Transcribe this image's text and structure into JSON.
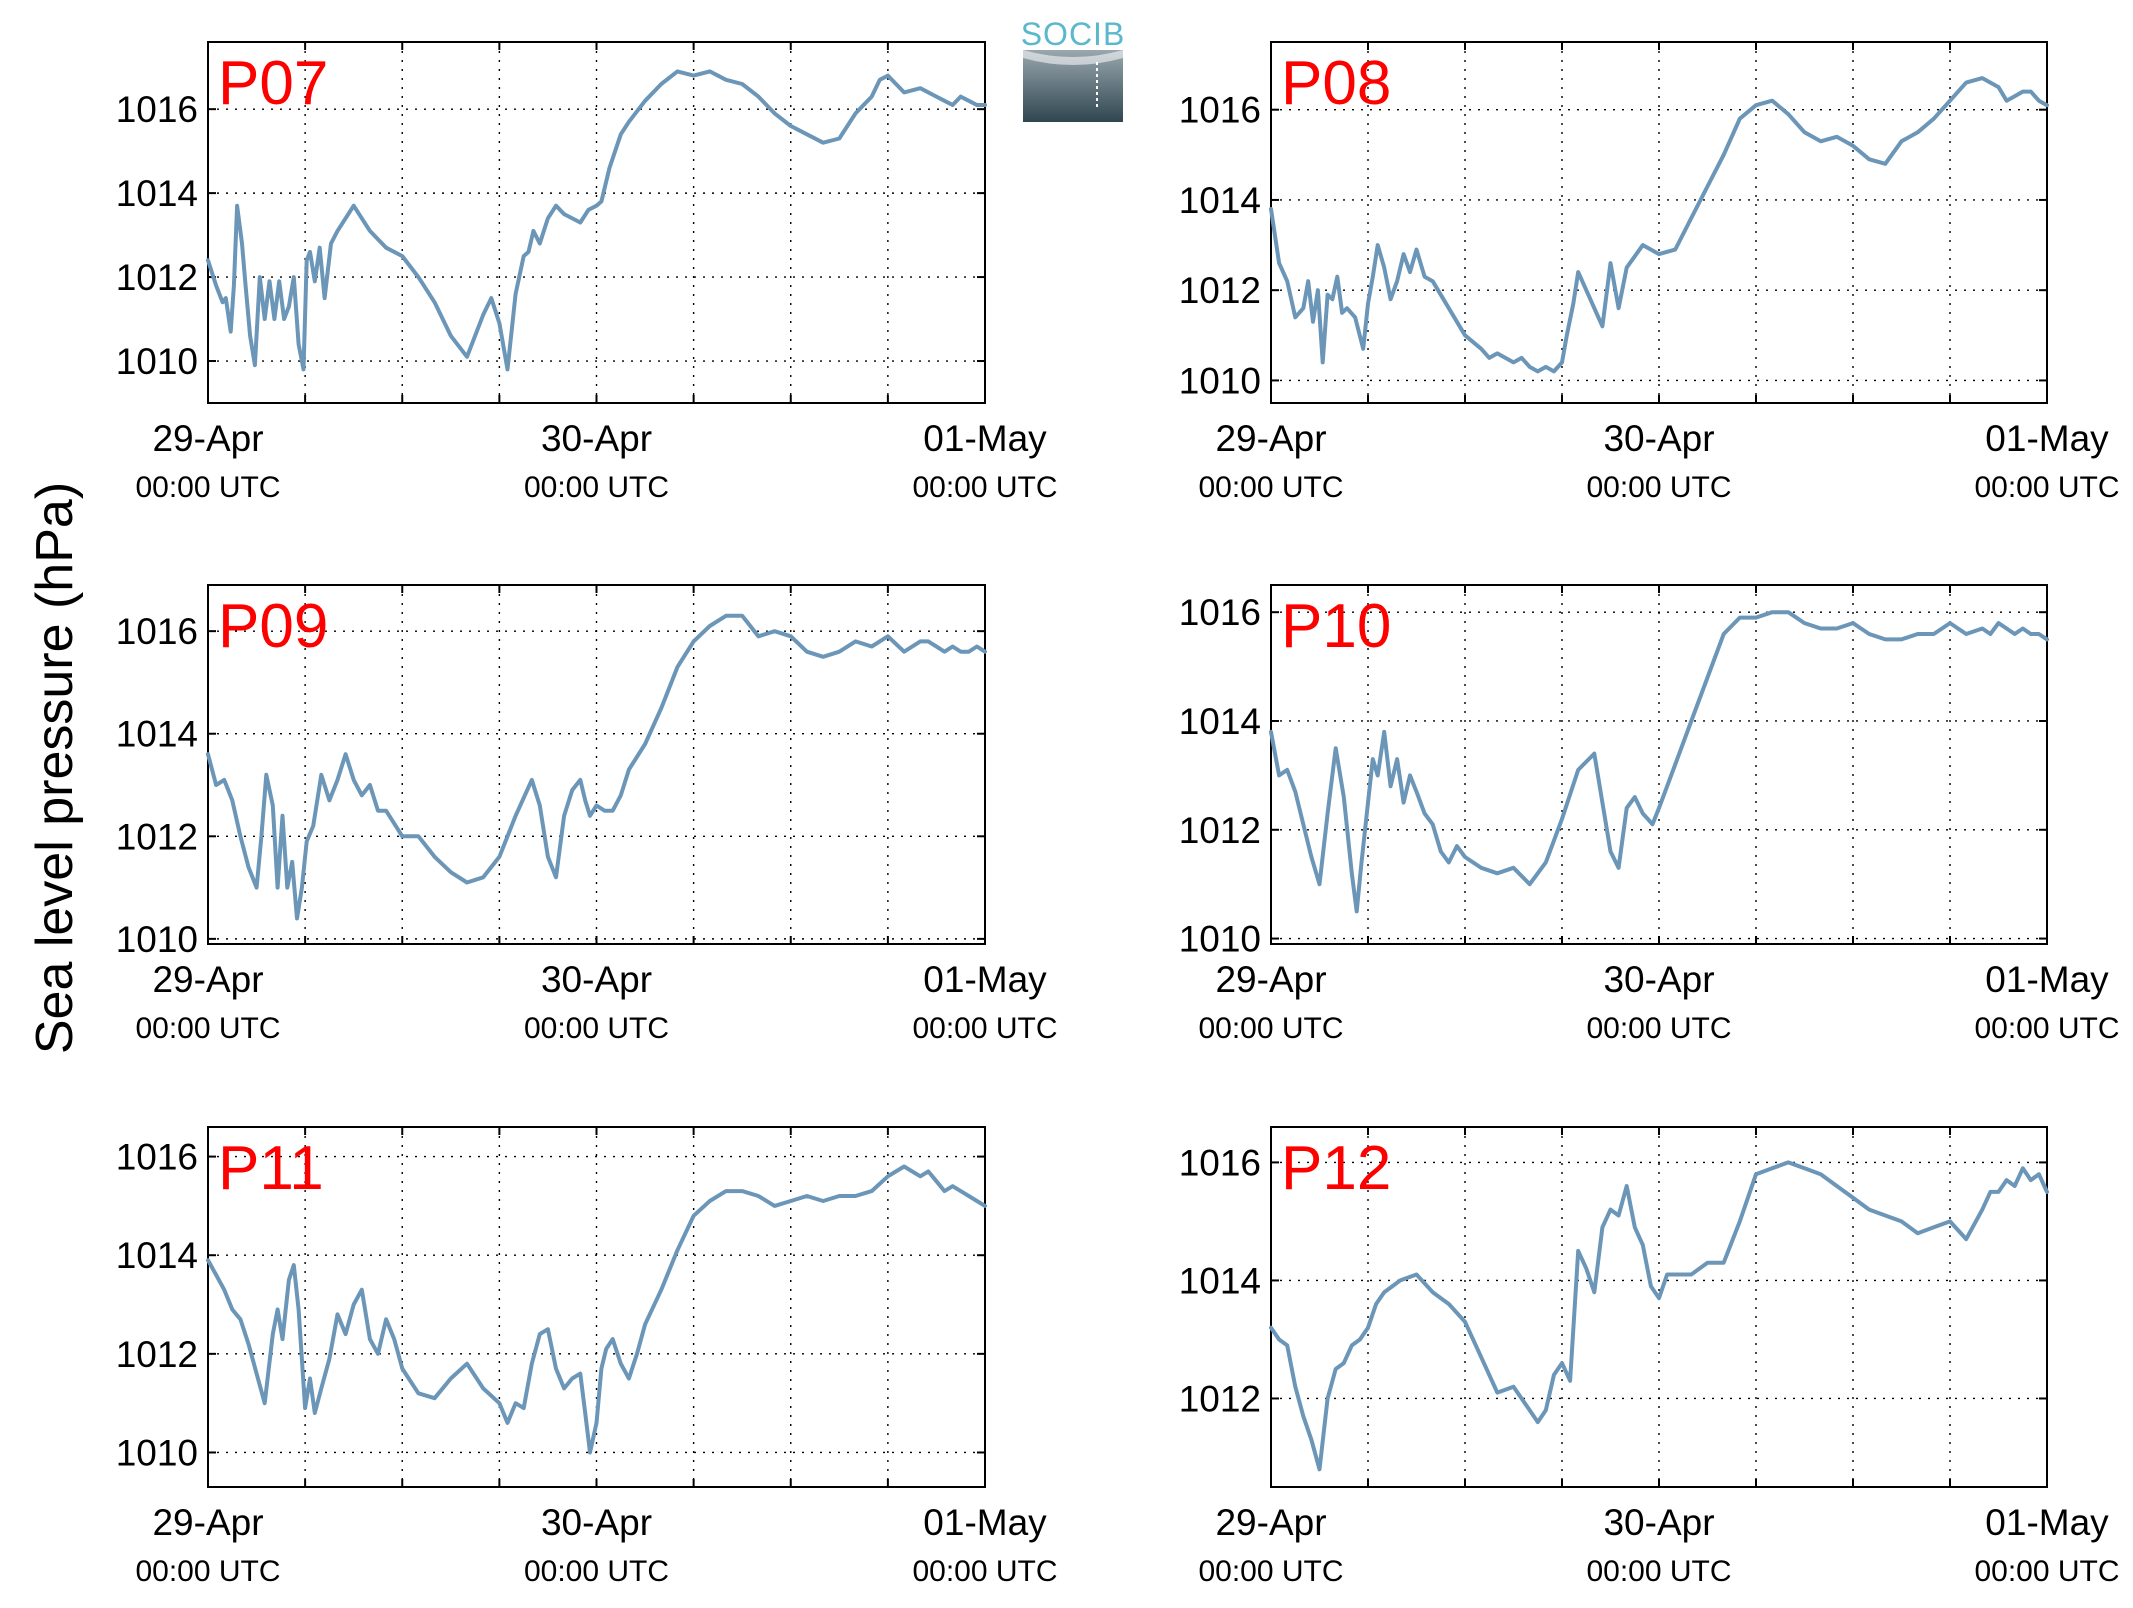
{
  "ylabel": "Sea level pressure (hPa)",
  "logo": {
    "text": "SOCIB",
    "text_color": "#5bb8cc",
    "grad_top": "#9aa7ae",
    "grad_bottom": "#2f4650"
  },
  "colors": {
    "line": "#6b96b8",
    "panel_label": "#ff0000",
    "grid": "#000000",
    "axes": "#000000"
  },
  "chart_data": [
    {
      "type": "line",
      "title": "P07",
      "ylim": [
        1009,
        1017.6
      ],
      "yticks": [
        1010,
        1012,
        1014,
        1016
      ],
      "xlim": [
        0,
        48
      ],
      "xticks": [
        {
          "x": 0,
          "day": "29-Apr",
          "time": "00:00 UTC"
        },
        {
          "x": 24,
          "day": "30-Apr",
          "time": "00:00 UTC"
        },
        {
          "x": 48,
          "day": "01-May",
          "time": "00:00 UTC"
        }
      ],
      "grid": true,
      "x": [
        0,
        0.5,
        0.9,
        1.1,
        1.4,
        1.6,
        1.8,
        2.1,
        2.3,
        2.6,
        2.9,
        3.2,
        3.5,
        3.8,
        4.1,
        4.4,
        4.7,
        5.0,
        5.3,
        5.6,
        5.9,
        6.1,
        6.3,
        6.6,
        6.9,
        7.2,
        7.6,
        8.0,
        8.5,
        9.0,
        10,
        11,
        12,
        13,
        14,
        15,
        16,
        17,
        17.5,
        18,
        18.5,
        19,
        19.5,
        19.8,
        20.1,
        20.5,
        21,
        21.5,
        22,
        23,
        23.5,
        24,
        24.3,
        24.8,
        25.5,
        26,
        27,
        28,
        29,
        30,
        31,
        32,
        33,
        34,
        35,
        36,
        37,
        38,
        39,
        40,
        41,
        41.5,
        42,
        43,
        44,
        45,
        45.5,
        46,
        46.5,
        47,
        47.5,
        48
      ],
      "y": [
        1012.4,
        1011.8,
        1011.4,
        1011.5,
        1010.7,
        1011.8,
        1013.7,
        1012.8,
        1011.9,
        1010.6,
        1009.9,
        1012.0,
        1011.0,
        1011.9,
        1011.0,
        1011.9,
        1011.0,
        1011.3,
        1012.0,
        1010.4,
        1009.8,
        1012.4,
        1012.6,
        1011.9,
        1012.7,
        1011.5,
        1012.8,
        1013.1,
        1013.4,
        1013.7,
        1013.1,
        1012.7,
        1012.5,
        1012.0,
        1011.4,
        1010.6,
        1010.1,
        1011.1,
        1011.5,
        1010.9,
        1009.8,
        1011.6,
        1012.5,
        1012.6,
        1013.1,
        1012.8,
        1013.4,
        1013.7,
        1013.5,
        1013.3,
        1013.6,
        1013.7,
        1013.8,
        1014.6,
        1015.4,
        1015.7,
        1016.2,
        1016.6,
        1016.9,
        1016.8,
        1016.9,
        1016.7,
        1016.6,
        1016.3,
        1015.9,
        1015.6,
        1015.4,
        1015.2,
        1015.3,
        1015.9,
        1016.3,
        1016.7,
        1016.8,
        1016.4,
        1016.5,
        1016.3,
        1016.2,
        1016.1,
        1016.3,
        1016.2,
        1016.1,
        1016.1
      ]
    },
    {
      "type": "line",
      "title": "P08",
      "ylim": [
        1009.5,
        1017.5
      ],
      "yticks": [
        1010,
        1012,
        1014,
        1016
      ],
      "xlim": [
        0,
        48
      ],
      "xticks": [
        {
          "x": 0,
          "day": "29-Apr",
          "time": "00:00 UTC"
        },
        {
          "x": 24,
          "day": "30-Apr",
          "time": "00:00 UTC"
        },
        {
          "x": 48,
          "day": "01-May",
          "time": "00:00 UTC"
        }
      ],
      "grid": true,
      "x": [
        0,
        0.5,
        1,
        1.5,
        2,
        2.3,
        2.6,
        2.9,
        3.2,
        3.5,
        3.8,
        4.1,
        4.4,
        4.7,
        5.2,
        5.7,
        6.0,
        6.3,
        6.6,
        7.0,
        7.4,
        7.8,
        8.2,
        8.6,
        9,
        9.5,
        10,
        11,
        12,
        13,
        13.5,
        14,
        14.5,
        15,
        15.5,
        16,
        16.5,
        17,
        17.5,
        18,
        18.3,
        18.7,
        19,
        19.5,
        20,
        20.5,
        21,
        21.5,
        22,
        23,
        24,
        25,
        26,
        27,
        28,
        29,
        30,
        31,
        32,
        33,
        34,
        35,
        36,
        37,
        38,
        39,
        40,
        41,
        42,
        43,
        44,
        44.5,
        45,
        45.5,
        46,
        46.5,
        47,
        47.5,
        48
      ],
      "y": [
        1013.8,
        1012.6,
        1012.2,
        1011.4,
        1011.6,
        1012.2,
        1011.3,
        1012.0,
        1010.4,
        1011.9,
        1011.8,
        1012.3,
        1011.5,
        1011.6,
        1011.4,
        1010.7,
        1011.7,
        1012.3,
        1013.0,
        1012.5,
        1011.8,
        1012.2,
        1012.8,
        1012.4,
        1012.9,
        1012.3,
        1012.2,
        1011.6,
        1011.0,
        1010.7,
        1010.5,
        1010.6,
        1010.5,
        1010.4,
        1010.5,
        1010.3,
        1010.2,
        1010.3,
        1010.2,
        1010.4,
        1011.0,
        1011.7,
        1012.4,
        1012.0,
        1011.6,
        1011.2,
        1012.6,
        1011.6,
        1012.5,
        1013.0,
        1012.8,
        1012.9,
        1013.6,
        1014.3,
        1015.0,
        1015.8,
        1016.1,
        1016.2,
        1015.9,
        1015.5,
        1015.3,
        1015.4,
        1015.2,
        1014.9,
        1014.8,
        1015.3,
        1015.5,
        1015.8,
        1016.2,
        1016.6,
        1016.7,
        1016.6,
        1016.5,
        1016.2,
        1016.3,
        1016.4,
        1016.4,
        1016.2,
        1016.1
      ]
    },
    {
      "type": "line",
      "title": "P09",
      "ylim": [
        1009.9,
        1016.9
      ],
      "yticks": [
        1010,
        1012,
        1014,
        1016
      ],
      "xlim": [
        0,
        48
      ],
      "xticks": [
        {
          "x": 0,
          "day": "29-Apr",
          "time": "00:00 UTC"
        },
        {
          "x": 24,
          "day": "30-Apr",
          "time": "00:00 UTC"
        },
        {
          "x": 48,
          "day": "01-May",
          "time": "00:00 UTC"
        }
      ],
      "grid": true,
      "x": [
        0,
        0.5,
        1,
        1.5,
        2,
        2.5,
        3,
        3.3,
        3.6,
        4,
        4.3,
        4.6,
        4.9,
        5.2,
        5.5,
        5.8,
        6.1,
        6.5,
        7,
        7.5,
        8,
        8.5,
        9,
        9.5,
        10,
        10.5,
        11,
        12,
        13,
        14,
        15,
        16,
        17,
        18,
        19,
        20,
        20.5,
        21,
        21.5,
        22,
        22.5,
        23,
        23.3,
        23.6,
        24,
        24.5,
        25,
        25.5,
        26,
        27,
        28,
        29,
        30,
        31,
        32,
        33,
        34,
        35,
        36,
        37,
        38,
        39,
        40,
        41,
        42,
        43,
        44,
        44.5,
        45,
        45.5,
        46,
        46.5,
        47,
        47.5,
        48
      ],
      "y": [
        1013.6,
        1013.0,
        1013.1,
        1012.7,
        1012.0,
        1011.4,
        1011.0,
        1012.0,
        1013.2,
        1012.6,
        1011.0,
        1012.4,
        1011.0,
        1011.5,
        1010.4,
        1011.0,
        1011.9,
        1012.2,
        1013.2,
        1012.7,
        1013.1,
        1013.6,
        1013.1,
        1012.8,
        1013.0,
        1012.5,
        1012.5,
        1012.0,
        1012.0,
        1011.6,
        1011.3,
        1011.1,
        1011.2,
        1011.6,
        1012.4,
        1013.1,
        1012.6,
        1011.6,
        1011.2,
        1012.4,
        1012.9,
        1013.1,
        1012.7,
        1012.4,
        1012.6,
        1012.5,
        1012.5,
        1012.8,
        1013.3,
        1013.8,
        1014.5,
        1015.3,
        1015.8,
        1016.1,
        1016.3,
        1016.3,
        1015.9,
        1016.0,
        1015.9,
        1015.6,
        1015.5,
        1015.6,
        1015.8,
        1015.7,
        1015.9,
        1015.6,
        1015.8,
        1015.8,
        1015.7,
        1015.6,
        1015.7,
        1015.6,
        1015.6,
        1015.7,
        1015.6
      ]
    },
    {
      "type": "line",
      "title": "P10",
      "ylim": [
        1009.9,
        1016.5
      ],
      "yticks": [
        1010,
        1012,
        1014,
        1016
      ],
      "xlim": [
        0,
        48
      ],
      "xticks": [
        {
          "x": 0,
          "day": "29-Apr",
          "time": "00:00 UTC"
        },
        {
          "x": 24,
          "day": "30-Apr",
          "time": "00:00 UTC"
        },
        {
          "x": 48,
          "day": "01-May",
          "time": "00:00 UTC"
        }
      ],
      "grid": true,
      "x": [
        0,
        0.5,
        1,
        1.5,
        2,
        2.5,
        3,
        3.5,
        4,
        4.5,
        5,
        5.3,
        5.6,
        6,
        6.3,
        6.6,
        7,
        7.4,
        7.8,
        8.2,
        8.6,
        9,
        9.5,
        10,
        10.5,
        11,
        11.5,
        12,
        13,
        14,
        15,
        16,
        17,
        18,
        19,
        20,
        20.5,
        21,
        21.5,
        22,
        22.5,
        23,
        23.3,
        23.6,
        24,
        24.5,
        25,
        25.5,
        26,
        27,
        28,
        29,
        30,
        31,
        32,
        33,
        34,
        35,
        36,
        37,
        38,
        39,
        40,
        41,
        42,
        43,
        44,
        44.5,
        45,
        45.5,
        46,
        46.5,
        47,
        47.5,
        48
      ],
      "y": [
        1013.8,
        1013.0,
        1013.1,
        1012.7,
        1012.1,
        1011.5,
        1011.0,
        1012.3,
        1013.5,
        1012.6,
        1011.2,
        1010.5,
        1011.4,
        1012.5,
        1013.3,
        1013.0,
        1013.8,
        1012.8,
        1013.3,
        1012.5,
        1013.0,
        1012.7,
        1012.3,
        1012.1,
        1011.6,
        1011.4,
        1011.7,
        1011.5,
        1011.3,
        1011.2,
        1011.3,
        1011.0,
        1011.4,
        1012.2,
        1013.1,
        1013.4,
        1012.5,
        1011.6,
        1011.3,
        1012.4,
        1012.6,
        1012.3,
        1012.2,
        1012.1,
        1012.4,
        1012.8,
        1013.2,
        1013.6,
        1014.0,
        1014.8,
        1015.6,
        1015.9,
        1015.9,
        1016.0,
        1016.0,
        1015.8,
        1015.7,
        1015.7,
        1015.8,
        1015.6,
        1015.5,
        1015.5,
        1015.6,
        1015.6,
        1015.8,
        1015.6,
        1015.7,
        1015.6,
        1015.8,
        1015.7,
        1015.6,
        1015.7,
        1015.6,
        1015.6,
        1015.5
      ]
    },
    {
      "type": "line",
      "title": "P11",
      "ylim": [
        1009.3,
        1016.6
      ],
      "yticks": [
        1010,
        1012,
        1014,
        1016
      ],
      "xlim": [
        0,
        48
      ],
      "xticks": [
        {
          "x": 0,
          "day": "29-Apr",
          "time": "00:00 UTC"
        },
        {
          "x": 24,
          "day": "30-Apr",
          "time": "00:00 UTC"
        },
        {
          "x": 48,
          "day": "01-May",
          "time": "00:00 UTC"
        }
      ],
      "grid": true,
      "x": [
        0,
        0.5,
        1,
        1.5,
        2,
        2.5,
        3,
        3.5,
        4,
        4.3,
        4.6,
        5,
        5.3,
        5.6,
        6,
        6.3,
        6.6,
        7,
        7.5,
        8,
        8.5,
        9,
        9.5,
        10,
        10.5,
        11,
        11.5,
        12,
        13,
        14,
        15,
        16,
        17,
        18,
        18.5,
        19,
        19.5,
        20,
        20.5,
        21,
        21.5,
        22,
        22.5,
        23,
        23.3,
        23.6,
        24,
        24.3,
        24.6,
        25,
        25.5,
        26,
        26.5,
        27,
        28,
        29,
        30,
        31,
        32,
        33,
        34,
        35,
        36,
        37,
        38,
        39,
        40,
        41,
        42,
        43,
        44,
        44.5,
        45,
        45.5,
        46,
        46.5,
        47,
        47.5,
        48
      ],
      "y": [
        1013.9,
        1013.6,
        1013.3,
        1012.9,
        1012.7,
        1012.2,
        1011.6,
        1011.0,
        1012.4,
        1012.9,
        1012.3,
        1013.5,
        1013.8,
        1012.9,
        1010.9,
        1011.5,
        1010.8,
        1011.3,
        1011.9,
        1012.8,
        1012.4,
        1013.0,
        1013.3,
        1012.3,
        1012.0,
        1012.7,
        1012.3,
        1011.7,
        1011.2,
        1011.1,
        1011.5,
        1011.8,
        1011.3,
        1011.0,
        1010.6,
        1011.0,
        1010.9,
        1011.8,
        1012.4,
        1012.5,
        1011.7,
        1011.3,
        1011.5,
        1011.6,
        1010.8,
        1010.0,
        1010.6,
        1011.7,
        1012.1,
        1012.3,
        1011.8,
        1011.5,
        1012.0,
        1012.6,
        1013.3,
        1014.1,
        1014.8,
        1015.1,
        1015.3,
        1015.3,
        1015.2,
        1015.0,
        1015.1,
        1015.2,
        1015.1,
        1015.2,
        1015.2,
        1015.3,
        1015.6,
        1015.8,
        1015.6,
        1015.7,
        1015.5,
        1015.3,
        1015.4,
        1015.3,
        1015.2,
        1015.1,
        1015.0
      ]
    },
    {
      "type": "line",
      "title": "P12",
      "ylim": [
        1010.5,
        1016.6
      ],
      "yticks": [
        1012,
        1014,
        1016
      ],
      "xlim": [
        0,
        48
      ],
      "xticks": [
        {
          "x": 0,
          "day": "29-Apr",
          "time": "00:00 UTC"
        },
        {
          "x": 24,
          "day": "30-Apr",
          "time": "00:00 UTC"
        },
        {
          "x": 48,
          "day": "01-May",
          "time": "00:00 UTC"
        }
      ],
      "grid": true,
      "x": [
        0,
        0.5,
        1,
        1.5,
        2,
        2.5,
        3,
        3.5,
        4,
        4.5,
        5,
        5.5,
        6,
        6.5,
        7,
        8,
        9,
        10,
        11,
        12,
        13,
        14,
        15,
        16,
        16.5,
        17,
        17.5,
        18,
        18.5,
        19,
        19.5,
        20,
        20.5,
        21,
        21.5,
        22,
        22.5,
        23,
        23.5,
        24,
        24.5,
        25,
        25.5,
        26,
        27,
        28,
        29,
        30,
        31,
        32,
        33,
        34,
        35,
        36,
        37,
        38,
        39,
        40,
        41,
        42,
        43,
        44,
        44.5,
        45,
        45.5,
        46,
        46.5,
        47,
        47.5,
        48
      ],
      "y": [
        1013.2,
        1013.0,
        1012.9,
        1012.2,
        1011.7,
        1011.3,
        1010.8,
        1012.0,
        1012.5,
        1012.6,
        1012.9,
        1013.0,
        1013.2,
        1013.6,
        1013.8,
        1014.0,
        1014.1,
        1013.8,
        1013.6,
        1013.3,
        1012.7,
        1012.1,
        1012.2,
        1011.8,
        1011.6,
        1011.8,
        1012.4,
        1012.6,
        1012.3,
        1014.5,
        1014.2,
        1013.8,
        1014.9,
        1015.2,
        1015.1,
        1015.6,
        1014.9,
        1014.6,
        1013.9,
        1013.7,
        1014.1,
        1014.1,
        1014.1,
        1014.1,
        1014.3,
        1014.3,
        1015.0,
        1015.8,
        1015.9,
        1016.0,
        1015.9,
        1015.8,
        1015.6,
        1015.4,
        1015.2,
        1015.1,
        1015.0,
        1014.8,
        1014.9,
        1015.0,
        1014.7,
        1015.2,
        1015.5,
        1015.5,
        1015.7,
        1015.6,
        1015.9,
        1015.7,
        1015.8,
        1015.5
      ]
    }
  ]
}
